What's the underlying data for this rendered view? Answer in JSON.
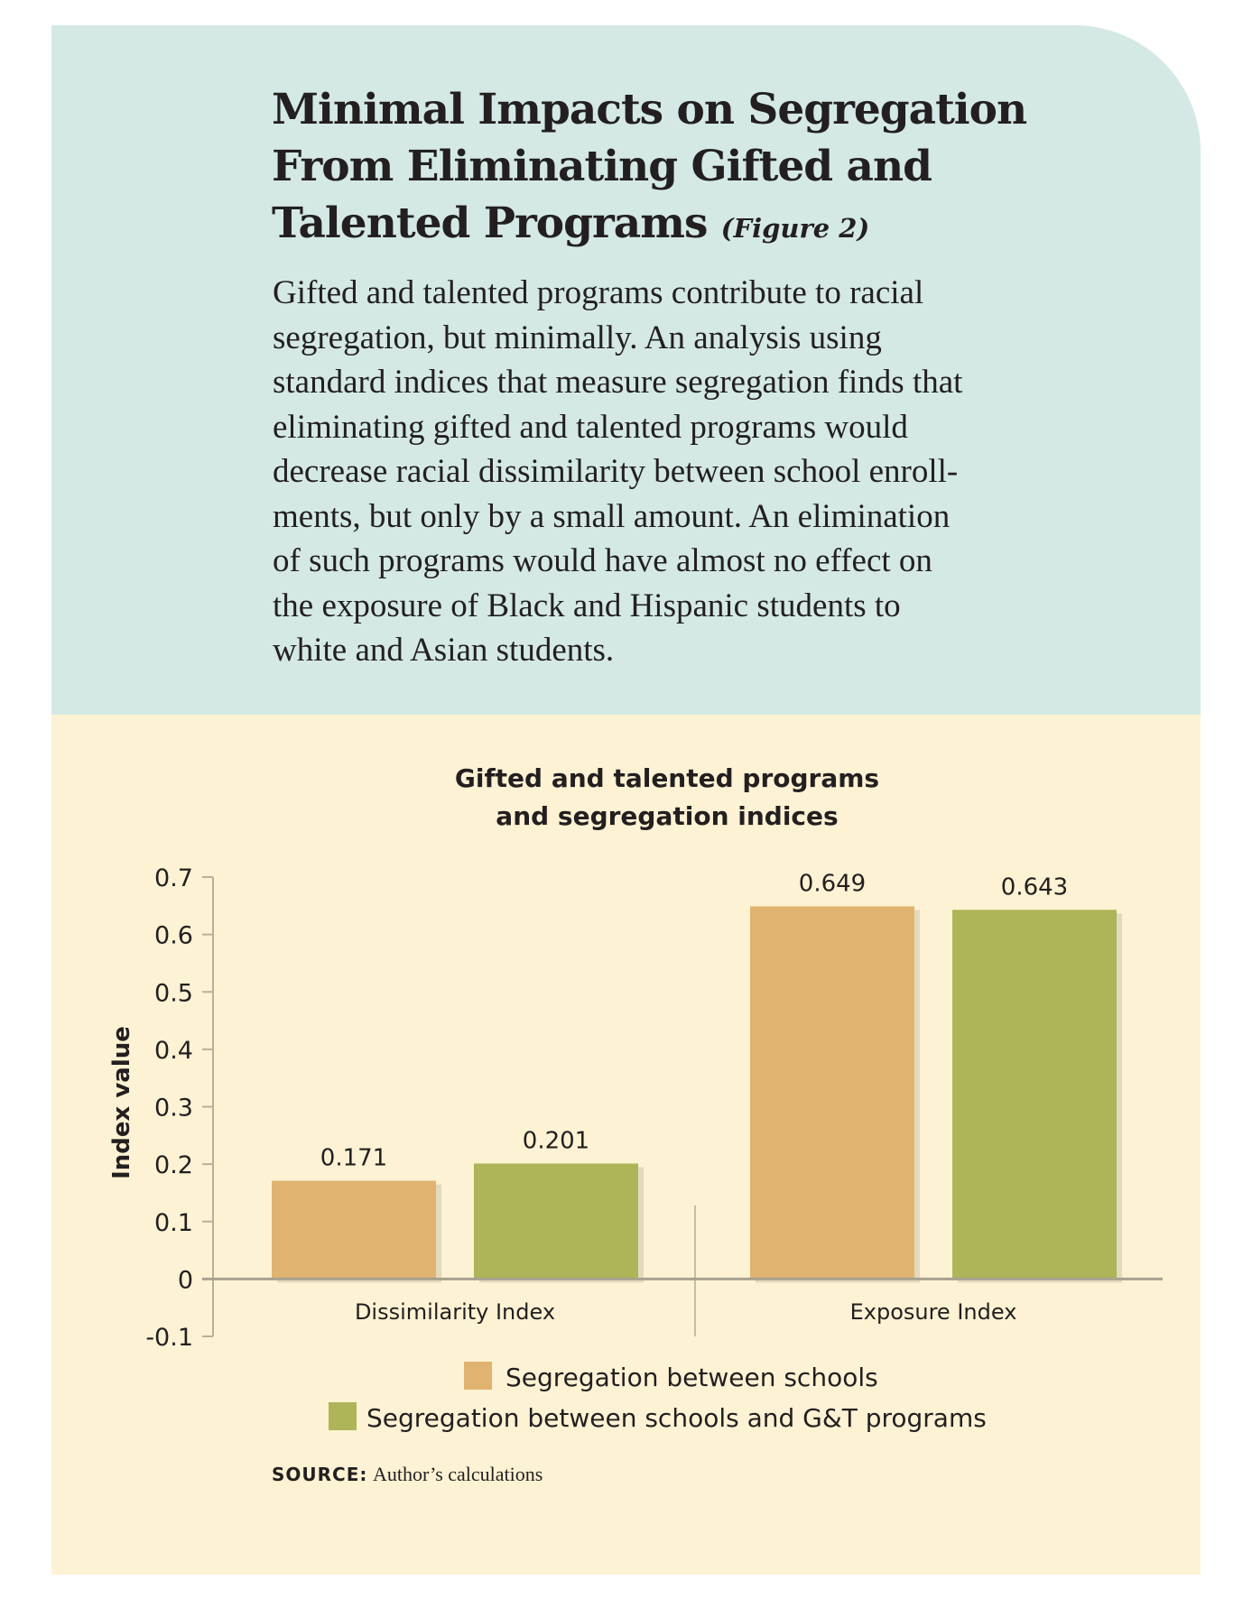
{
  "header": {
    "title": "Minimal Impacts on Segregation From Eliminating Gifted and Talented Programs",
    "figure_label": "(Figure 2)",
    "body_lines": [
      "Gifted and talented programs contribute to racial",
      "segregation, but minimally. An analysis using",
      "standard indices that measure segregation finds that",
      "eliminating gifted and talented programs would",
      "decrease racial dissimilarity between school enroll-",
      "ments, but only by a small amount. An elimination",
      "of such programs would have almost no effect on",
      "the exposure of Black and Hispanic students to",
      "white and Asian students."
    ]
  },
  "chart_data": {
    "type": "bar",
    "title": [
      "Gifted and talented programs",
      "and segregation indices"
    ],
    "ylabel": "Index value",
    "xlabel": "",
    "ylim": [
      -0.1,
      0.7
    ],
    "yticks": [
      "0.7",
      "0.6",
      "0.5",
      "0.4",
      "0.3",
      "0.2",
      "0.1",
      "0",
      "-0.1"
    ],
    "ytick_values": [
      0.7,
      0.6,
      0.5,
      0.4,
      0.3,
      0.2,
      0.1,
      0,
      -0.1
    ],
    "categories": [
      "Dissimilarity Index",
      "Exposure Index"
    ],
    "series": [
      {
        "name": "Segregation between schools",
        "color": "#e0b370",
        "values": [
          0.171,
          0.649
        ],
        "labels": [
          "0.171",
          "0.649"
        ]
      },
      {
        "name": "Segregation between schools and G&T programs",
        "color": "#adb558",
        "values": [
          0.201,
          0.643
        ],
        "labels": [
          "0.201",
          "0.643"
        ]
      }
    ],
    "legend_position": "bottom"
  },
  "source": {
    "label": "SOURCE:",
    "text": "Author’s calculations"
  },
  "colors": {
    "teal": "#d4e9e6",
    "cream": "#fdf2d3"
  }
}
